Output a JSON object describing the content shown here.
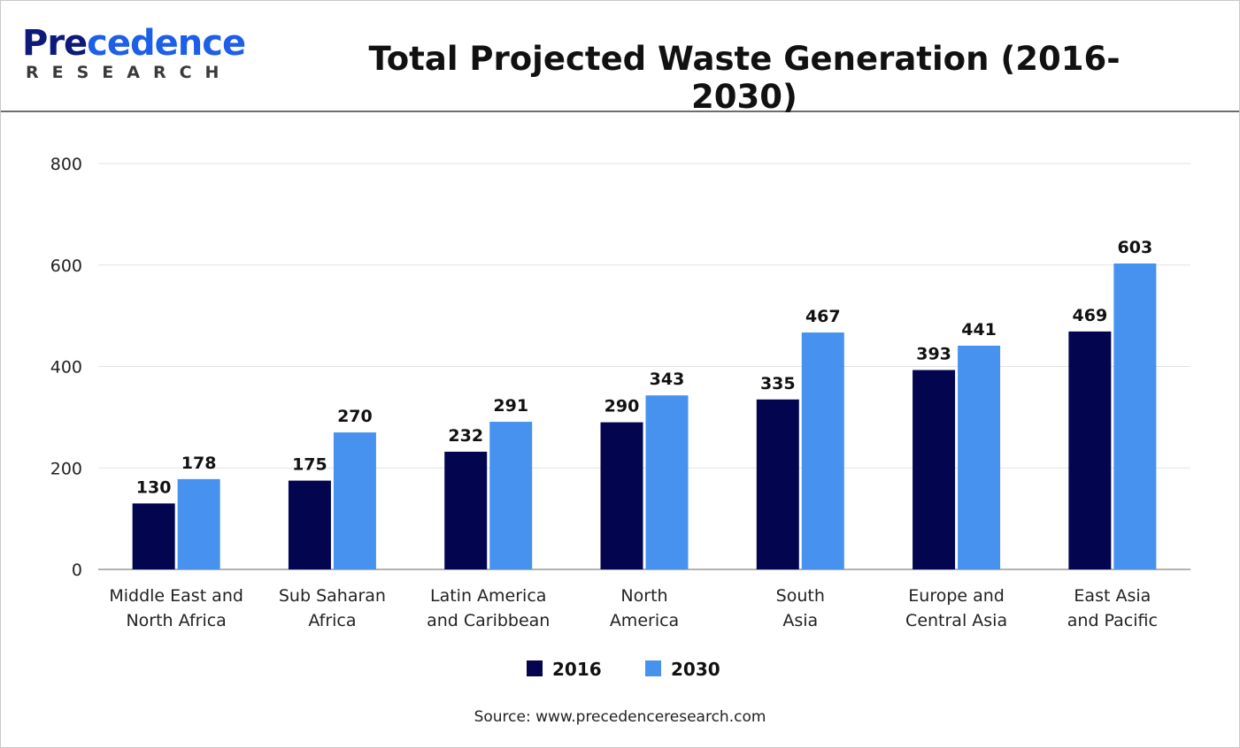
{
  "logo": {
    "brand_dark": "Pre",
    "brand_light": "cedence",
    "sub": "RESEARCH"
  },
  "title": "Total Projected Waste Generation (2016-2030)",
  "source": "Source: www.precedenceresearch.com",
  "chart_data": {
    "type": "bar",
    "title": "Total Projected Waste Generation (2016-2030)",
    "categories": [
      [
        "Middle East and",
        "North Africa"
      ],
      [
        "Sub Saharan",
        "Africa"
      ],
      [
        "Latin America",
        "and Caribbean"
      ],
      [
        "North",
        "America"
      ],
      [
        "South",
        "Asia"
      ],
      [
        "Europe and",
        "Central Asia"
      ],
      [
        "East Asia",
        "and Pacific"
      ]
    ],
    "series": [
      {
        "name": "2016",
        "color": "#03064e",
        "values": [
          130,
          175,
          232,
          290,
          335,
          393,
          469
        ]
      },
      {
        "name": "2030",
        "color": "#4792ee",
        "values": [
          178,
          270,
          291,
          343,
          467,
          441,
          603
        ]
      }
    ],
    "ylim": [
      0,
      800
    ],
    "yticks": [
      0,
      200,
      400,
      600,
      800
    ],
    "grid": true,
    "legend": "bottom"
  }
}
